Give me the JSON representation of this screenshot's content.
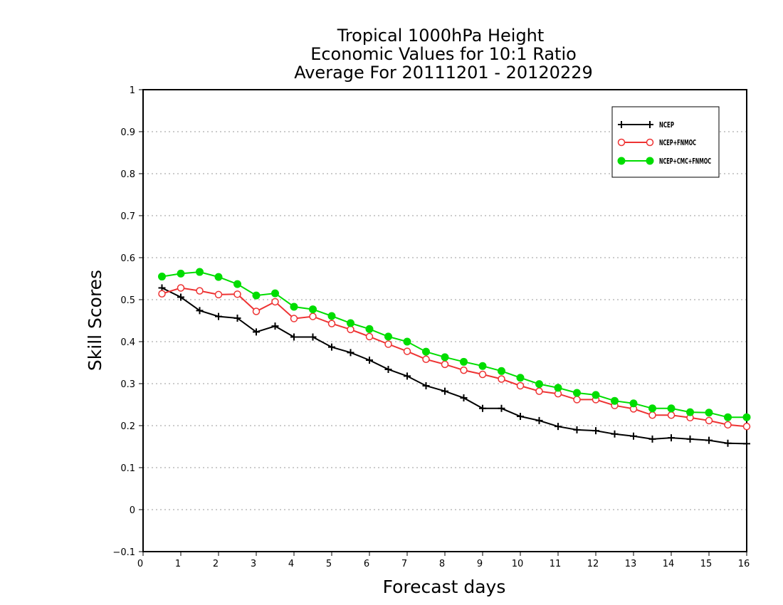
{
  "chart_data": {
    "type": "line",
    "title": [
      "Tropical 1000hPa Height",
      "Economic Values for 10:1 Ratio",
      "Average For 20111201 - 20120229"
    ],
    "xlabel": "Forecast days",
    "ylabel": "Skill Scores",
    "xlim": [
      0,
      16
    ],
    "ylim": [
      -0.1,
      1
    ],
    "x_ticks": [
      "0",
      "1",
      "2",
      "3",
      "4",
      "5",
      "6",
      "7",
      "8",
      "9",
      "10",
      "11",
      "12",
      "13",
      "14",
      "15",
      "16"
    ],
    "y_ticks": [
      "−0.1",
      "0",
      "0.1",
      "0.2",
      "0.3",
      "0.4",
      "0.5",
      "0.6",
      "0.7",
      "0.8",
      "0.9",
      "1"
    ],
    "grid": "horizontal dotted",
    "legend_position": "top-right",
    "x": [
      0.5,
      1,
      1.5,
      2,
      2.5,
      3,
      3.5,
      4,
      4.5,
      5,
      5.5,
      6,
      6.5,
      7,
      7.5,
      8,
      8.5,
      9,
      9.5,
      10,
      10.5,
      11,
      11.5,
      12,
      12.5,
      13,
      13.5,
      14,
      14.5,
      15,
      15.5,
      16
    ],
    "series": [
      {
        "name": "NCEP",
        "color": "#000000",
        "marker": "plus",
        "values": [
          0.528,
          0.506,
          0.474,
          0.46,
          0.456,
          0.423,
          0.437,
          0.411,
          0.411,
          0.387,
          0.374,
          0.356,
          0.334,
          0.318,
          0.295,
          0.282,
          0.266,
          0.241,
          0.241,
          0.222,
          0.212,
          0.198,
          0.19,
          0.188,
          0.18,
          0.175,
          0.168,
          0.171,
          0.168,
          0.165,
          0.158,
          0.157
        ]
      },
      {
        "name": "NCEP+FNMOC",
        "color": "#ee3333",
        "marker": "open-circle",
        "values": [
          0.514,
          0.528,
          0.521,
          0.512,
          0.513,
          0.472,
          0.495,
          0.455,
          0.46,
          0.443,
          0.429,
          0.412,
          0.394,
          0.377,
          0.358,
          0.346,
          0.332,
          0.322,
          0.311,
          0.295,
          0.282,
          0.276,
          0.262,
          0.262,
          0.248,
          0.24,
          0.225,
          0.225,
          0.219,
          0.212,
          0.202,
          0.198
        ]
      },
      {
        "name": "NCEP+CMC+FNMOC",
        "color": "#00dd00",
        "marker": "filled-circle",
        "values": [
          0.555,
          0.562,
          0.566,
          0.554,
          0.537,
          0.51,
          0.515,
          0.483,
          0.477,
          0.461,
          0.444,
          0.43,
          0.412,
          0.4,
          0.376,
          0.363,
          0.352,
          0.342,
          0.33,
          0.314,
          0.299,
          0.29,
          0.278,
          0.273,
          0.259,
          0.253,
          0.241,
          0.241,
          0.232,
          0.231,
          0.22,
          0.22
        ]
      }
    ]
  }
}
